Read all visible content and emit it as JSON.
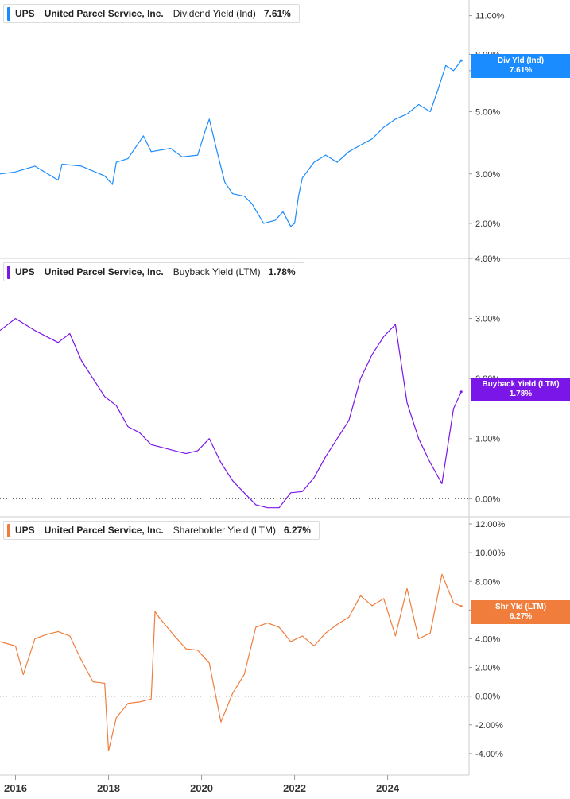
{
  "legends": [
    {
      "ticker": "UPS",
      "company": "United Parcel Service, Inc.",
      "metric": "Dividend Yield (Ind)",
      "value": "7.61%",
      "color": "#1a8cff"
    },
    {
      "ticker": "UPS",
      "company": "United Parcel Service, Inc.",
      "metric": "Buyback Yield (LTM)",
      "value": "1.78%",
      "color": "#7b16e8"
    },
    {
      "ticker": "UPS",
      "company": "United Parcel Service, Inc.",
      "metric": "Shareholder Yield (LTM)",
      "value": "6.27%",
      "color": "#f07d3c"
    }
  ],
  "flags": [
    {
      "label": "Div Yld (Ind)",
      "value": "7.61%",
      "color": "#1a8cff"
    },
    {
      "label": "Buyback Yield (LTM)",
      "value": "1.78%",
      "color": "#7b16e8"
    },
    {
      "label": "Shr Yld (LTM)",
      "value": "6.27%",
      "color": "#f07d3c"
    }
  ],
  "chart_data": [
    {
      "type": "line",
      "title": "Dividend Yield (Ind)",
      "y_scale": "log",
      "yticks": [
        {
          "v": 2,
          "label": "2.00%"
        },
        {
          "v": 3,
          "label": "3.00%"
        },
        {
          "v": 5,
          "label": "5.00%"
        },
        {
          "v": 7,
          "label": "7.00%"
        },
        {
          "v": 8,
          "label": "8.00%"
        },
        {
          "v": 11,
          "label": "11.00%"
        }
      ],
      "ylim": [
        1.5,
        12.5
      ],
      "zero_line": false,
      "series": [
        {
          "name": "Dividend Yield (Ind)",
          "color": "#1a8cff",
          "x": [
            "2015-09",
            "2016-01",
            "2016-06",
            "2016-12",
            "2017-01",
            "2017-06",
            "2017-12",
            "2018-02",
            "2018-03",
            "2018-06",
            "2018-10",
            "2018-12",
            "2019-05",
            "2019-08",
            "2019-12",
            "2020-02",
            "2020-03",
            "2020-05",
            "2020-07",
            "2020-09",
            "2020-12",
            "2021-02",
            "2021-05",
            "2021-08",
            "2021-10",
            "2021-12",
            "2022-01",
            "2022-02",
            "2022-03",
            "2022-06",
            "2022-09",
            "2022-12",
            "2023-03",
            "2023-06",
            "2023-09",
            "2023-12",
            "2024-03",
            "2024-06",
            "2024-09",
            "2024-12",
            "2025-02",
            "2025-04",
            "2025-06",
            "2025-08"
          ],
          "y": [
            3.0,
            3.05,
            3.2,
            2.85,
            3.25,
            3.2,
            2.95,
            2.75,
            3.3,
            3.4,
            4.1,
            3.6,
            3.7,
            3.45,
            3.5,
            4.3,
            4.7,
            3.6,
            2.8,
            2.55,
            2.5,
            2.35,
            2.0,
            2.05,
            2.2,
            1.95,
            2.0,
            2.5,
            2.9,
            3.3,
            3.5,
            3.3,
            3.6,
            3.8,
            4.0,
            4.4,
            4.7,
            4.9,
            5.3,
            5.0,
            6.0,
            7.3,
            7.0,
            7.61
          ]
        }
      ]
    },
    {
      "type": "line",
      "title": "Buyback Yield (LTM)",
      "yticks": [
        {
          "v": 0,
          "label": "0.00%"
        },
        {
          "v": 1,
          "label": "1.00%"
        },
        {
          "v": 2,
          "label": "2.00%"
        },
        {
          "v": 3,
          "label": "3.00%"
        },
        {
          "v": 4,
          "label": "4.00%"
        }
      ],
      "ylim": [
        -0.3,
        4.0
      ],
      "zero_line": true,
      "series": [
        {
          "name": "Buyback Yield (LTM)",
          "color": "#7b16e8",
          "x": [
            "2015-09",
            "2016-01",
            "2016-06",
            "2016-12",
            "2017-03",
            "2017-06",
            "2017-09",
            "2017-12",
            "2018-03",
            "2018-06",
            "2018-09",
            "2018-12",
            "2019-03",
            "2019-06",
            "2019-09",
            "2019-12",
            "2020-03",
            "2020-06",
            "2020-09",
            "2020-12",
            "2021-03",
            "2021-06",
            "2021-09",
            "2021-12",
            "2022-03",
            "2022-06",
            "2022-09",
            "2022-12",
            "2023-03",
            "2023-06",
            "2023-09",
            "2023-12",
            "2024-03",
            "2024-06",
            "2024-09",
            "2024-12",
            "2025-03",
            "2025-06",
            "2025-08"
          ],
          "y": [
            2.8,
            3.0,
            2.8,
            2.6,
            2.75,
            2.3,
            2.0,
            1.7,
            1.55,
            1.2,
            1.1,
            0.9,
            0.85,
            0.8,
            0.75,
            0.8,
            1.0,
            0.6,
            0.3,
            0.1,
            -0.1,
            -0.15,
            -0.15,
            0.1,
            0.12,
            0.35,
            0.7,
            1.0,
            1.3,
            2.0,
            2.4,
            2.7,
            2.9,
            1.6,
            1.0,
            0.6,
            0.25,
            1.5,
            1.78
          ]
        }
      ]
    },
    {
      "type": "line",
      "title": "Shareholder Yield (LTM)",
      "yticks": [
        {
          "v": -4,
          "label": "-4.00%"
        },
        {
          "v": -2,
          "label": "-2.00%"
        },
        {
          "v": 0,
          "label": "0.00%"
        },
        {
          "v": 2,
          "label": "2.00%"
        },
        {
          "v": 4,
          "label": "4.00%"
        },
        {
          "v": 6,
          "label": "6.00%"
        },
        {
          "v": 8,
          "label": "8.00%"
        },
        {
          "v": 10,
          "label": "10.00%"
        },
        {
          "v": 12,
          "label": "12.00%"
        }
      ],
      "ylim": [
        -5.5,
        12.5
      ],
      "zero_line": true,
      "series": [
        {
          "name": "Shareholder Yield (LTM)",
          "color": "#f07d3c",
          "x": [
            "2015-09",
            "2016-01",
            "2016-03",
            "2016-06",
            "2016-09",
            "2016-12",
            "2017-03",
            "2017-06",
            "2017-09",
            "2017-12",
            "2018-01",
            "2018-03",
            "2018-06",
            "2018-09",
            "2018-12",
            "2019-01",
            "2019-02",
            "2019-06",
            "2019-09",
            "2019-12",
            "2020-03",
            "2020-06",
            "2020-09",
            "2020-12",
            "2021-03",
            "2021-06",
            "2021-09",
            "2021-12",
            "2022-03",
            "2022-06",
            "2022-09",
            "2022-12",
            "2023-03",
            "2023-06",
            "2023-09",
            "2023-12",
            "2024-03",
            "2024-06",
            "2024-09",
            "2024-12",
            "2025-03",
            "2025-06",
            "2025-08"
          ],
          "y": [
            3.8,
            3.5,
            1.5,
            4.0,
            4.3,
            4.5,
            4.2,
            2.5,
            1.0,
            0.9,
            -3.8,
            -1.5,
            -0.5,
            -0.4,
            -0.2,
            5.9,
            5.5,
            4.2,
            3.3,
            3.2,
            2.3,
            -1.8,
            0.2,
            1.5,
            4.8,
            5.1,
            4.8,
            3.8,
            4.2,
            3.5,
            4.4,
            5.0,
            5.5,
            7.0,
            6.3,
            6.8,
            4.2,
            7.5,
            4.0,
            4.4,
            8.5,
            6.5,
            6.27
          ]
        }
      ]
    }
  ],
  "x_axis": {
    "ticks": [
      {
        "x": "2016-01",
        "label": "2016"
      },
      {
        "x": "2018-01",
        "label": "2018"
      },
      {
        "x": "2020-01",
        "label": "2020"
      },
      {
        "x": "2022-01",
        "label": "2022"
      },
      {
        "x": "2024-01",
        "label": "2024"
      }
    ],
    "range": [
      "2015-09",
      "2025-10"
    ]
  }
}
